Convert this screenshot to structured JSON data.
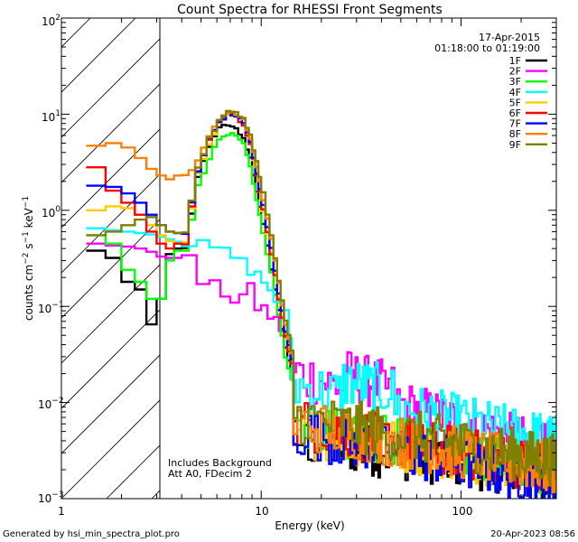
{
  "chart_data": {
    "type": "line",
    "title": "Count Spectra for RHESSI Front Segments",
    "xlabel": "Energy (keV)",
    "ylabel": "counts cm-2 s-1 keV-1",
    "ylabel_parts": {
      "base": "counts cm",
      "exp1": "−2",
      "mid": " s",
      "exp2": "−1",
      "tail": " keV",
      "exp3": "−1"
    },
    "xscale": "log",
    "yscale": "log",
    "xlim": [
      1.0,
      300.0
    ],
    "ylim": [
      0.001,
      100.0
    ],
    "x_tick_labels": [
      "1",
      "10",
      "100"
    ],
    "y_tick_labels": [
      {
        "base": "10",
        "exp": "−3"
      },
      {
        "base": "10",
        "exp": "−2"
      },
      {
        "base": "10",
        "exp": "−1"
      },
      {
        "base": "10",
        "exp": "0"
      },
      {
        "base": "10",
        "exp": "1"
      },
      {
        "base": "10",
        "exp": "2"
      }
    ],
    "date": "17-Apr-2015",
    "time_range": "01:18:00 to 01:19:00",
    "shaded_region_below_keV": 3.0,
    "annotations": [
      "Includes Background",
      "Att A0, FDecim 2"
    ],
    "footer_left": "Generated by hsi_min_spectra_plot.pro",
    "footer_right": "20-Apr-2023 08:56",
    "series": [
      {
        "name": "1F",
        "color": "#000000",
        "low": [
          0.38,
          0.32,
          0.18,
          0.15,
          0.065,
          0.12,
          0.35,
          0.4
        ],
        "peak": [
          2.2,
          4.5,
          7.5,
          7.5,
          7.0,
          5.5,
          3.5,
          1.6,
          0.7,
          0.25,
          0.09,
          0.038,
          0.02
        ],
        "tail_level": 0.004,
        "tail_end": 0.0018
      },
      {
        "name": "2F",
        "color": "#ff00ff",
        "low": [
          0.45,
          0.43,
          0.42,
          0.4,
          0.37,
          0.33,
          0.32
        ],
        "mid": [
          0.3,
          0.18,
          0.16,
          0.14,
          0.12,
          0.13,
          0.15,
          0.1,
          0.095,
          0.08,
          0.07,
          0.06,
          0.05,
          0.04
        ],
        "tail_level": 0.02,
        "tail_end": 0.003
      },
      {
        "name": "3F",
        "color": "#00ff00",
        "low": [
          0.55,
          0.45,
          0.24,
          0.18,
          0.12,
          0.12,
          0.3,
          0.38
        ],
        "peak": [
          1.8,
          3.5,
          5.5,
          6.3,
          6.0,
          4.8,
          2.8,
          1.3,
          0.6,
          0.22,
          0.08,
          0.03,
          0.018
        ],
        "tail_level": 0.006,
        "tail_end": 0.002
      },
      {
        "name": "4F",
        "color": "#00ffff",
        "low": [
          0.65,
          0.62,
          0.6,
          0.58,
          0.56,
          0.53,
          0.5,
          0.47
        ],
        "mid": [
          0.45,
          0.42,
          0.4,
          0.36,
          0.33,
          0.28,
          0.25,
          0.21,
          0.18,
          0.15,
          0.12,
          0.1,
          0.08,
          0.05
        ],
        "tail_level": 0.015,
        "tail_end": 0.004
      },
      {
        "name": "5F",
        "color": "#ffcc00",
        "low": [
          1.0,
          1.1,
          1.05,
          0.9,
          0.7,
          0.55,
          0.48,
          0.45
        ],
        "peak": [
          2.5,
          5.0,
          8.0,
          9.8,
          9.5,
          7.5,
          4.8,
          2.4,
          1.0,
          0.35,
          0.12,
          0.05,
          0.025
        ],
        "tail_level": 0.005,
        "tail_end": 0.002
      },
      {
        "name": "6F",
        "color": "#ff0000",
        "low": [
          2.8,
          1.6,
          1.2,
          0.9,
          0.6,
          0.45,
          0.4,
          0.45
        ],
        "peak": [
          2.5,
          5.5,
          8.5,
          10.0,
          9.5,
          7.5,
          4.8,
          2.4,
          1.0,
          0.35,
          0.12,
          0.05,
          0.025
        ],
        "tail_level": 0.006,
        "tail_end": 0.002
      },
      {
        "name": "7F",
        "color": "#0000ff",
        "low": [
          1.8,
          1.75,
          1.5,
          1.2,
          0.9,
          0.7,
          0.6,
          0.58
        ],
        "peak": [
          2.6,
          5.5,
          8.5,
          10.0,
          9.8,
          8.0,
          5.0,
          2.5,
          1.1,
          0.4,
          0.14,
          0.055,
          0.028
        ],
        "tail_level": 0.005,
        "tail_end": 0.0015
      },
      {
        "name": "8F",
        "color": "#ff8000",
        "low": [
          4.7,
          5.0,
          4.5,
          3.5,
          2.7,
          2.3,
          2.1,
          2.3
        ],
        "peak": [
          3.2,
          6.0,
          9.0,
          10.5,
          10.2,
          8.5,
          5.6,
          2.9,
          1.3,
          0.5,
          0.17,
          0.065,
          0.032
        ],
        "tail_level": 0.006,
        "tail_end": 0.002
      },
      {
        "name": "9F",
        "color": "#808000",
        "low": [
          0.55,
          0.6,
          0.7,
          0.8,
          0.85,
          0.7,
          0.6,
          0.58
        ],
        "peak": [
          2.8,
          5.5,
          8.5,
          10.5,
          10.5,
          9.0,
          6.0,
          3.2,
          1.5,
          0.55,
          0.18,
          0.07,
          0.035
        ],
        "tail_level": 0.007,
        "tail_end": 0.0025
      }
    ]
  }
}
